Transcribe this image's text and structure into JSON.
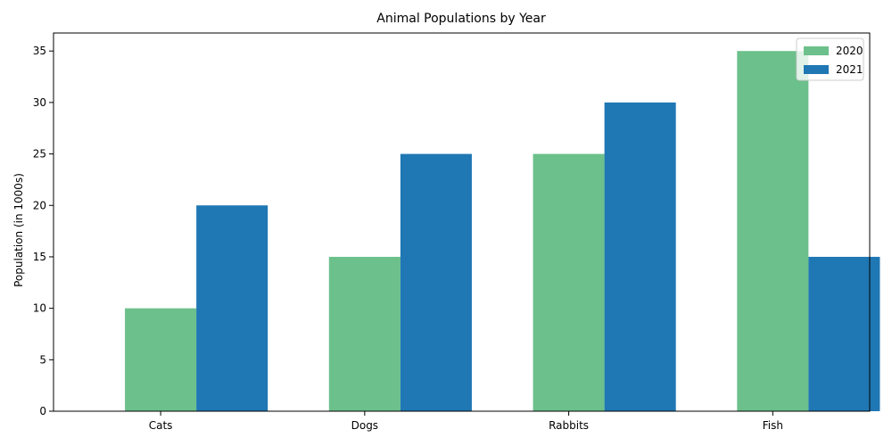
{
  "chart_data": {
    "type": "bar",
    "title": "Animal Populations by Year",
    "xlabel": "",
    "ylabel": "Population (in 1000s)",
    "categories": [
      "Cats",
      "Dogs",
      "Rabbits",
      "Fish"
    ],
    "series": [
      {
        "name": "2020",
        "values": [
          10,
          15,
          25,
          35
        ],
        "color": "#6cc08b"
      },
      {
        "name": "2021",
        "values": [
          20,
          25,
          30,
          15
        ],
        "color": "#1f77b4"
      }
    ],
    "ylim": [
      0,
      36.75
    ],
    "yticks": [
      0,
      5,
      10,
      15,
      20,
      25,
      30,
      35
    ],
    "grid": false,
    "legend_position": "top-right"
  }
}
